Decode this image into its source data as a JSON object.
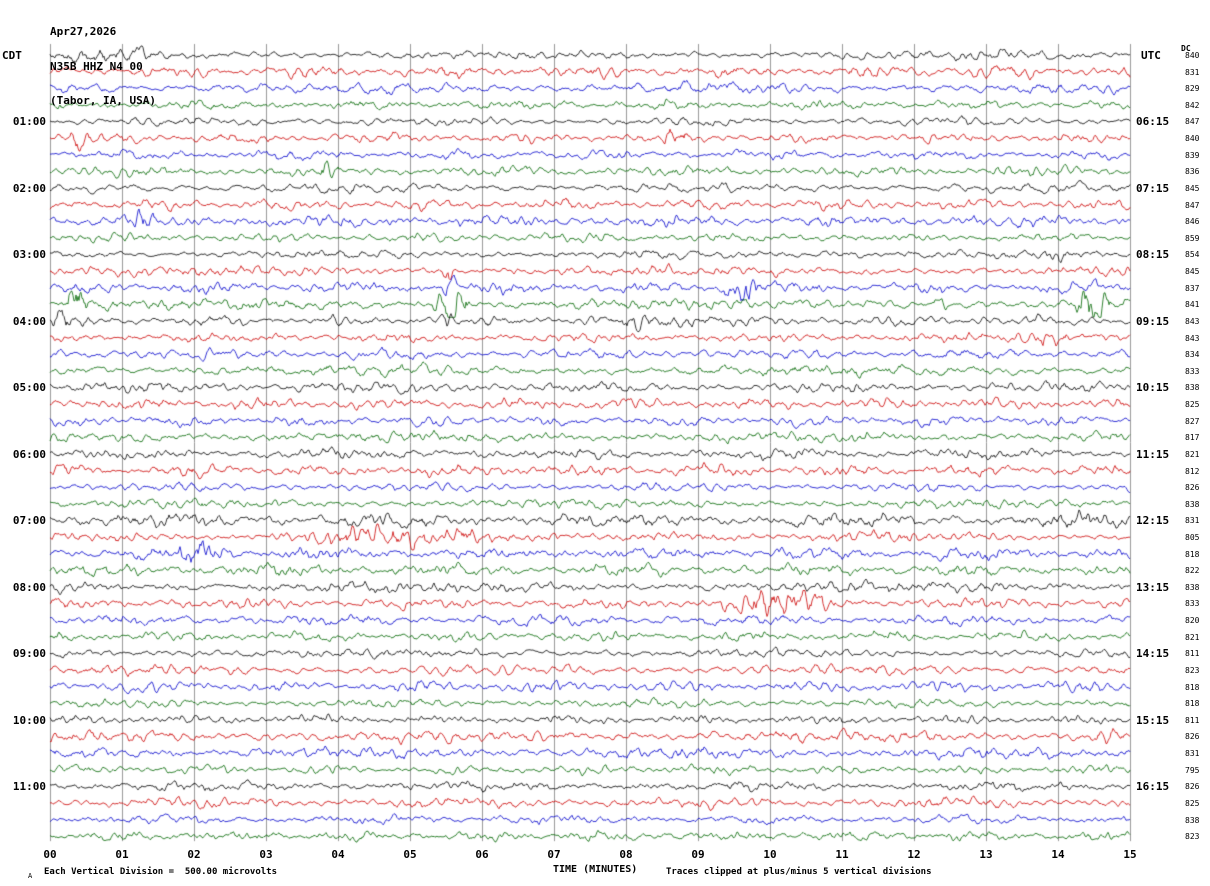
{
  "title": {
    "date": "Apr27,2026",
    "station": "N35B HHZ N4 00",
    "location": "(Tabor, IA, USA)"
  },
  "axes": {
    "left_header": "CDT",
    "right_header": "UTC",
    "dc_header": "DC"
  },
  "footer": {
    "left": "Each Vertical Division =  500.00 microvolts",
    "center": "TIME (MINUTES)",
    "right": "Traces clipped at plus/minus 5 vertical divisions",
    "corner": "A"
  },
  "chart_data": {
    "type": "line",
    "subtype": "seismogram-helicorder",
    "station": "N35B HHZ N4 00",
    "date": "Apr27,2026",
    "location": "(Tabor, IA, USA)",
    "xlabel": "TIME (MINUTES)",
    "x_range": [
      0,
      15
    ],
    "x_ticks": [
      "00",
      "01",
      "02",
      "03",
      "04",
      "05",
      "06",
      "07",
      "08",
      "09",
      "10",
      "11",
      "12",
      "13",
      "14",
      "15"
    ],
    "rows": 48,
    "minutes_per_row": 15,
    "traces_per_hour": 4,
    "colors": [
      "#000000",
      "#cc0000",
      "#0000cc",
      "#006600"
    ],
    "grid_color": "#999999",
    "left_timezone": "CDT",
    "right_timezone": "UTC",
    "left_labels": [
      "01:00",
      "02:00",
      "03:00",
      "04:00",
      "05:00",
      "06:00",
      "07:00",
      "08:00",
      "09:00",
      "10:00",
      "11:00"
    ],
    "right_labels": [
      "06:15",
      "07:15",
      "08:15",
      "09:15",
      "10:15",
      "11:15",
      "12:15",
      "13:15",
      "14:15",
      "15:15",
      "16:15"
    ],
    "dc_values": [
      840,
      831,
      829,
      842,
      847,
      840,
      839,
      836,
      845,
      847,
      846,
      859,
      854,
      845,
      837,
      841,
      843,
      843,
      834,
      833,
      838,
      825,
      827,
      817,
      821,
      812,
      826,
      838,
      831,
      805,
      818,
      822,
      838,
      833,
      820,
      821,
      811,
      823,
      818,
      818,
      811,
      826,
      831,
      795,
      826,
      825,
      838,
      823
    ],
    "vertical_division_microvolts": 500.0,
    "clip_divisions": 5,
    "burst_format": "[row_index, start_minute, end_minute, peak_gain]",
    "bursts": [
      [
        0,
        0.0,
        1.6,
        1.9
      ],
      [
        0,
        12.4,
        15.0,
        1.5
      ],
      [
        5,
        0.25,
        0.6,
        3.0
      ],
      [
        5,
        8.5,
        8.9,
        2.2
      ],
      [
        7,
        3.7,
        3.95,
        2.2
      ],
      [
        10,
        1.15,
        1.45,
        2.2
      ],
      [
        12,
        10.6,
        11.3,
        1.9
      ],
      [
        12,
        13.8,
        14.15,
        2.2
      ],
      [
        13,
        5.45,
        5.62,
        5.0
      ],
      [
        14,
        5.45,
        5.65,
        4.0
      ],
      [
        14,
        9.3,
        9.9,
        4.5
      ],
      [
        15,
        0.2,
        0.55,
        5.0
      ],
      [
        15,
        5.3,
        5.85,
        8.0
      ],
      [
        15,
        12.25,
        12.5,
        3.0
      ],
      [
        15,
        14.2,
        14.75,
        5.0
      ],
      [
        16,
        0.0,
        0.35,
        2.5
      ],
      [
        16,
        5.4,
        5.6,
        3.0
      ],
      [
        16,
        7.9,
        9.5,
        2.3
      ],
      [
        17,
        13.35,
        14.2,
        3.5
      ],
      [
        28,
        0.0,
        15.0,
        1.5
      ],
      [
        28,
        13.3,
        14.9,
        2.2
      ],
      [
        29,
        3.0,
        7.2,
        2.6
      ],
      [
        29,
        10.4,
        12.0,
        1.8
      ],
      [
        30,
        1.7,
        2.6,
        2.4
      ],
      [
        33,
        9.2,
        10.95,
        3.2
      ],
      [
        41,
        14.35,
        14.8,
        2.2
      ]
    ]
  }
}
